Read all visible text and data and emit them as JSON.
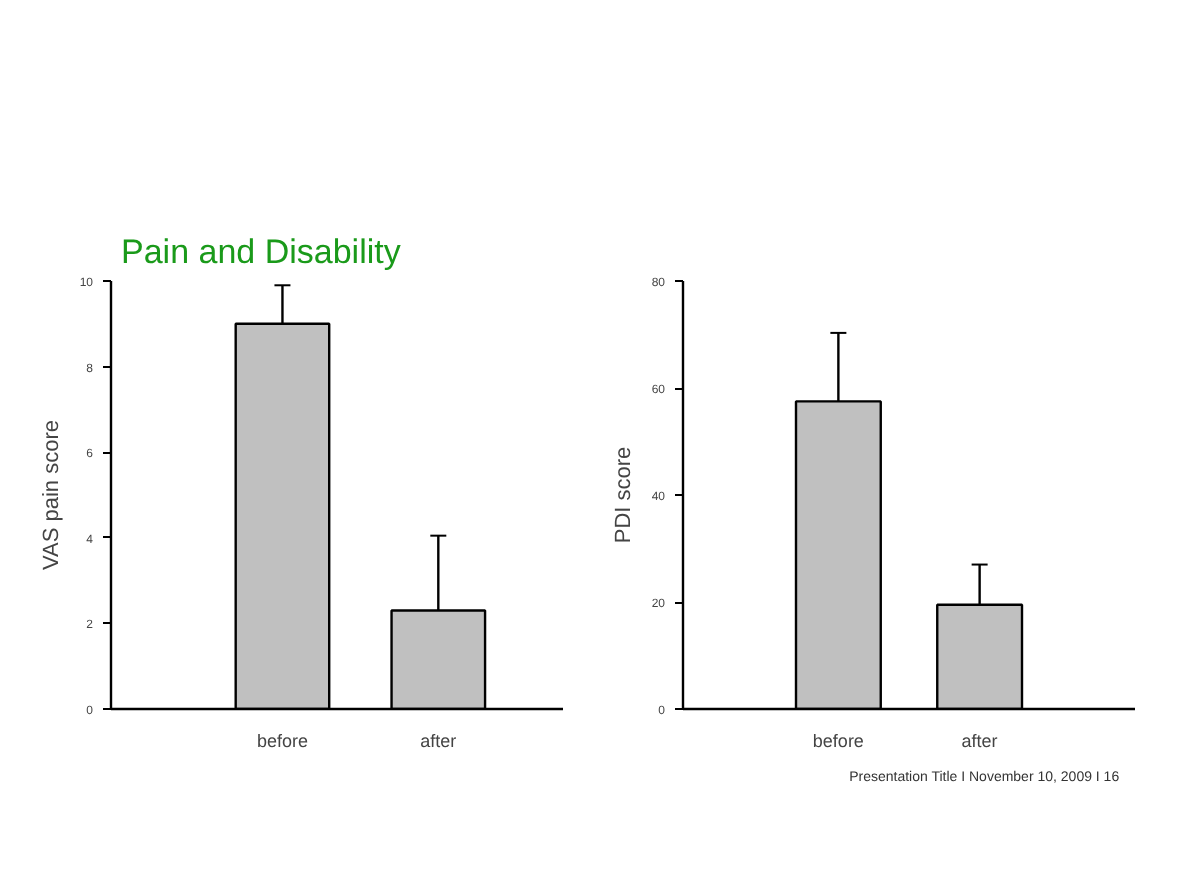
{
  "chart_data": [
    {
      "type": "bar",
      "title": "Pain and Disability",
      "categories": [
        "before",
        "after"
      ],
      "values": [
        9.0,
        2.3
      ],
      "errors": [
        [
          9.0,
          9.9
        ],
        [
          2.3,
          4.05
        ]
      ],
      "color": "#c0c0c0",
      "ylabel": "VAS pain score",
      "ylim": [
        0,
        10
      ],
      "yticks": [
        0,
        2,
        4,
        6,
        8,
        10
      ],
      "grid": false
    },
    {
      "type": "bar",
      "categories": [
        "before",
        "after"
      ],
      "values": [
        57.5,
        19.5
      ],
      "errors": [
        [
          57.5,
          70.3
        ],
        [
          19.5,
          27
        ]
      ],
      "color": "#c0c0c0",
      "ylabel": "PDI score",
      "ylim": [
        0,
        80
      ],
      "yticks": [
        0,
        20,
        40,
        60,
        80
      ],
      "grid": false,
      "annotations": [
        "Presentation Title  I  November 10, 2009  I  16"
      ]
    }
  ]
}
